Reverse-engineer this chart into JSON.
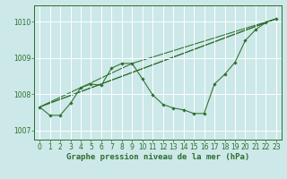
{
  "title": "Graphe pression niveau de la mer (hPa)",
  "bg_color": "#cce8e8",
  "grid_color": "#ffffff",
  "line_color": "#2d6e2d",
  "xlim": [
    -0.5,
    23.5
  ],
  "ylim": [
    1006.75,
    1010.45
  ],
  "yticks": [
    1007,
    1008,
    1009,
    1010
  ],
  "xtick_labels": [
    "0",
    "1",
    "2",
    "3",
    "4",
    "5",
    "6",
    "7",
    "8",
    "9",
    "10",
    "11",
    "12",
    "13",
    "14",
    "15",
    "16",
    "17",
    "18",
    "19",
    "20",
    "21",
    "22",
    "23"
  ],
  "xticks": [
    0,
    1,
    2,
    3,
    4,
    5,
    6,
    7,
    8,
    9,
    10,
    11,
    12,
    13,
    14,
    15,
    16,
    17,
    18,
    19,
    20,
    21,
    22,
    23
  ],
  "main_line": {
    "x": [
      0,
      1,
      2,
      3,
      4,
      5,
      6,
      7,
      8,
      9,
      10,
      11,
      12,
      13,
      14,
      15,
      16,
      17,
      18,
      19,
      20,
      21,
      22,
      23
    ],
    "y": [
      1007.65,
      1007.42,
      1007.42,
      1007.75,
      1008.18,
      1008.28,
      1008.25,
      1008.72,
      1008.85,
      1008.85,
      1008.42,
      1007.98,
      1007.72,
      1007.62,
      1007.57,
      1007.47,
      1007.47,
      1008.28,
      1008.55,
      1008.88,
      1009.48,
      1009.78,
      1009.98,
      1010.08
    ]
  },
  "straight_lines": [
    {
      "x": [
        0,
        23
      ],
      "y": [
        1007.65,
        1010.08
      ]
    },
    {
      "x": [
        0,
        23
      ],
      "y": [
        1007.65,
        1010.08
      ]
    },
    {
      "x": [
        0,
        9,
        23
      ],
      "y": [
        1007.65,
        1008.85,
        1010.08
      ]
    }
  ],
  "xlabel_fontsize": 6.5,
  "tick_fontsize": 5.5
}
